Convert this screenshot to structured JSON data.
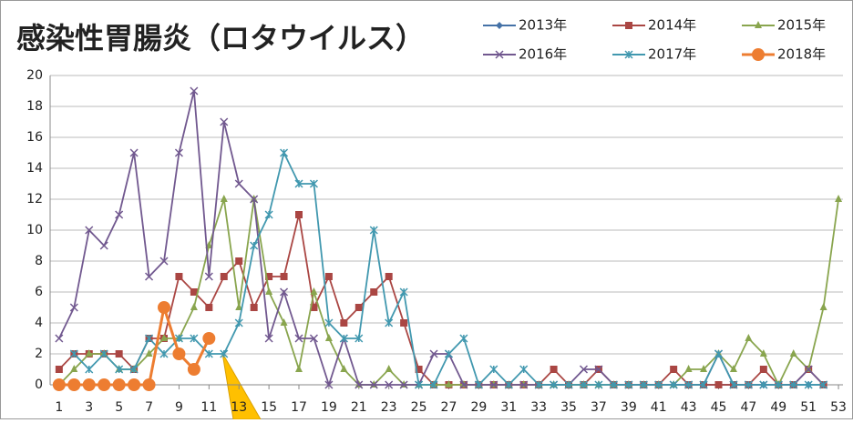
{
  "chart_data": {
    "type": "line",
    "title": "感染性胃腸炎（ロタウイルス）",
    "x": [
      1,
      2,
      3,
      4,
      5,
      6,
      7,
      8,
      9,
      10,
      11,
      12,
      13,
      14,
      15,
      16,
      17,
      18,
      19,
      20,
      21,
      22,
      23,
      24,
      25,
      26,
      27,
      28,
      29,
      30,
      31,
      32,
      33,
      34,
      35,
      36,
      37,
      38,
      39,
      40,
      41,
      42,
      43,
      44,
      45,
      46,
      47,
      48,
      49,
      50,
      51,
      52,
      53
    ],
    "xlim": [
      0.4,
      53.3
    ],
    "xticks": [
      1,
      3,
      5,
      7,
      9,
      11,
      13,
      15,
      17,
      19,
      21,
      23,
      25,
      27,
      29,
      31,
      33,
      35,
      37,
      39,
      41,
      43,
      45,
      47,
      49,
      51,
      53
    ],
    "ylim": [
      0,
      20
    ],
    "yticks": [
      0,
      2,
      4,
      6,
      8,
      10,
      12,
      14,
      16,
      18,
      20
    ],
    "grid": true,
    "series": [
      {
        "name": "2013年",
        "color": "#4572a7",
        "marker": "diamond",
        "values": [
          null,
          null,
          null,
          null,
          null,
          null,
          null,
          null,
          null,
          null,
          null,
          null,
          null,
          null,
          null,
          null,
          null,
          null,
          null,
          null,
          null,
          null,
          null,
          null,
          null,
          null,
          null,
          null,
          null,
          null,
          null,
          null,
          null,
          null,
          null,
          null,
          null,
          null,
          null,
          null,
          0,
          0,
          0,
          0,
          0,
          0,
          0,
          0,
          0,
          0,
          0,
          0,
          null
        ]
      },
      {
        "name": "2014年",
        "color": "#aa4643",
        "marker": "square",
        "values": [
          1,
          2,
          2,
          2,
          2,
          1,
          3,
          3,
          7,
          6,
          5,
          7,
          8,
          5,
          7,
          7,
          11,
          5,
          7,
          4,
          5,
          6,
          7,
          4,
          1,
          0,
          0,
          0,
          0,
          0,
          0,
          0,
          0,
          1,
          0,
          0,
          1,
          0,
          0,
          0,
          0,
          1,
          0,
          0,
          0,
          0,
          0,
          1,
          0,
          0,
          1,
          0,
          null
        ]
      },
      {
        "name": "2015年",
        "color": "#89a54e",
        "marker": "triangle",
        "values": [
          0,
          1,
          2,
          2,
          1,
          1,
          2,
          3,
          3,
          5,
          9,
          12,
          5,
          12,
          6,
          4,
          1,
          6,
          3,
          1,
          0,
          0,
          1,
          0,
          0,
          0,
          0,
          0,
          0,
          0,
          0,
          0,
          0,
          0,
          0,
          0,
          0,
          0,
          0,
          0,
          0,
          0,
          1,
          1,
          2,
          1,
          3,
          2,
          0,
          2,
          1,
          5,
          12
        ]
      },
      {
        "name": "2016年",
        "color": "#71588f",
        "marker": "x",
        "values": [
          3,
          5,
          10,
          9,
          11,
          15,
          7,
          8,
          15,
          19,
          7,
          17,
          13,
          12,
          3,
          6,
          3,
          3,
          0,
          3,
          0,
          0,
          0,
          0,
          0,
          2,
          2,
          0,
          0,
          0,
          0,
          0,
          0,
          0,
          0,
          1,
          1,
          0,
          0,
          0,
          0,
          0,
          0,
          0,
          2,
          0,
          0,
          0,
          0,
          0,
          1,
          0,
          null
        ]
      },
      {
        "name": "2017年",
        "color": "#4198af",
        "marker": "star",
        "values": [
          null,
          2,
          1,
          2,
          1,
          1,
          3,
          2,
          3,
          3,
          2,
          2,
          4,
          9,
          11,
          15,
          13,
          13,
          4,
          3,
          3,
          10,
          4,
          6,
          0,
          0,
          2,
          3,
          0,
          1,
          0,
          1,
          0,
          0,
          0,
          0,
          0,
          0,
          0,
          0,
          0,
          0,
          0,
          0,
          2,
          0,
          0,
          0,
          0,
          0,
          0,
          0,
          null
        ]
      },
      {
        "name": "2018年",
        "color": "#ed7d31",
        "marker": "circle",
        "values": [
          0,
          0,
          0,
          0,
          0,
          0,
          0,
          5,
          2,
          1,
          3,
          null,
          null,
          null,
          null,
          null,
          null,
          null,
          null,
          null,
          null,
          null,
          null,
          null,
          null,
          null,
          null,
          null,
          null,
          null,
          null,
          null,
          null,
          null,
          null,
          null,
          null,
          null,
          null,
          null,
          null,
          null,
          null,
          null,
          null,
          null,
          null,
          null,
          null,
          null,
          null,
          null,
          null
        ]
      }
    ]
  }
}
